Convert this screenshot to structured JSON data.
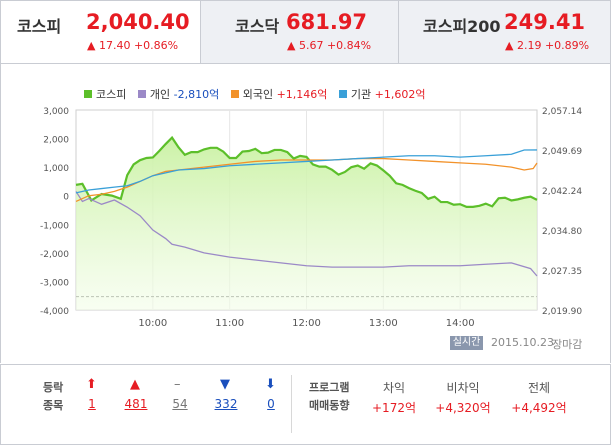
{
  "tabs": [
    {
      "name": "코스피",
      "value": "2,040.40",
      "change": "▲ 17.40 +0.86%",
      "active": true
    },
    {
      "name": "코스닥",
      "value": "681.97",
      "change": "▲ 5.67 +0.84%",
      "active": false
    },
    {
      "name": "코스피200",
      "value": "249.41",
      "change": "▲ 2.19 +0.89%",
      "active": false
    }
  ],
  "legend": {
    "kospi": "코스피",
    "individual_label": "개인",
    "individual_value": "-2,810억",
    "foreign_label": "외국인",
    "foreign_value": "+1,146억",
    "institution_label": "기관",
    "institution_value": "+1,602억"
  },
  "colors": {
    "kospi": "#5cbf2a",
    "kospi_fill": "#c9f1a2",
    "individual": "#9b89c7",
    "foreign": "#f2922a",
    "institution": "#3aa0d8",
    "up": "#e61c23",
    "down": "#1a4fbd"
  },
  "chart_data": {
    "type": "line",
    "x_ticks": [
      "10:00",
      "11:00",
      "12:00",
      "13:00",
      "14:00"
    ],
    "y_left_ticks": [
      "3,000",
      "2,000",
      "1,000",
      "0",
      "-1,000",
      "-2,000",
      "-3,000",
      "-4,000"
    ],
    "y_right_ticks": [
      "2,057.14",
      "2,049.69",
      "2,042.24",
      "2,034.80",
      "2,027.35",
      "2,019.90"
    ],
    "ylim_left": [
      -4000,
      3000
    ],
    "ylim_right": [
      2019.9,
      2057.14
    ],
    "x_range": [
      "09:00",
      "15:00"
    ],
    "series": [
      {
        "name": "코스피",
        "axis": "right",
        "x": [
          "09:00",
          "09:05",
          "09:12",
          "09:20",
          "09:28",
          "09:35",
          "09:40",
          "09:45",
          "09:50",
          "09:55",
          "10:00",
          "10:05",
          "10:10",
          "10:15",
          "10:20",
          "10:25",
          "10:30",
          "10:35",
          "10:40",
          "10:45",
          "10:50",
          "10:55",
          "11:00",
          "11:05",
          "11:10",
          "11:15",
          "11:20",
          "11:25",
          "11:30",
          "11:35",
          "11:40",
          "11:45",
          "11:50",
          "11:55",
          "12:00",
          "12:05",
          "12:10",
          "12:15",
          "12:20",
          "12:25",
          "12:30",
          "12:35",
          "12:40",
          "12:45",
          "12:50",
          "12:55",
          "13:00",
          "13:05",
          "13:10",
          "13:15",
          "13:20",
          "13:25",
          "13:30",
          "13:35",
          "13:40",
          "13:45",
          "13:50",
          "13:55",
          "14:00",
          "14:05",
          "14:10",
          "14:15",
          "14:20",
          "14:25",
          "14:30",
          "14:35",
          "14:40",
          "14:45",
          "14:50",
          "14:55",
          "15:00"
        ],
        "values": [
          2043.2,
          2043.4,
          2040.3,
          2041.5,
          2041.2,
          2040.6,
          2045.0,
          2047.0,
          2047.8,
          2048.2,
          2048.3,
          2049.5,
          2050.8,
          2052.0,
          2050.2,
          2048.8,
          2049.3,
          2049.3,
          2049.8,
          2050.1,
          2050.1,
          2049.4,
          2048.2,
          2048.2,
          2049.4,
          2049.5,
          2049.9,
          2049.1,
          2049.2,
          2049.7,
          2049.7,
          2049.3,
          2048.1,
          2048.6,
          2048.4,
          2047.0,
          2046.6,
          2046.6,
          2046.0,
          2045.1,
          2045.6,
          2046.5,
          2046.8,
          2046.2,
          2047.2,
          2046.8,
          2045.9,
          2044.9,
          2043.5,
          2043.2,
          2042.6,
          2042.1,
          2041.7,
          2040.6,
          2041.0,
          2040.0,
          2040.0,
          2039.5,
          2039.6,
          2039.1,
          2039.1,
          2039.3,
          2039.7,
          2039.2,
          2040.7,
          2040.8,
          2040.3,
          2040.5,
          2040.8,
          2041.0,
          2040.4
        ]
      },
      {
        "name": "개인",
        "axis": "left",
        "x": [
          "09:00",
          "09:05",
          "09:10",
          "09:20",
          "09:30",
          "09:40",
          "09:50",
          "10:00",
          "10:10",
          "10:15",
          "10:25",
          "10:40",
          "11:00",
          "11:20",
          "11:40",
          "12:00",
          "12:20",
          "12:40",
          "13:00",
          "13:20",
          "13:40",
          "14:00",
          "14:20",
          "14:40",
          "14:55",
          "15:00"
        ],
        "values": [
          150,
          -200,
          -100,
          -300,
          -150,
          -400,
          -700,
          -1200,
          -1500,
          -1700,
          -1800,
          -2000,
          -2150,
          -2250,
          -2350,
          -2450,
          -2500,
          -2500,
          -2500,
          -2450,
          -2450,
          -2450,
          -2400,
          -2350,
          -2550,
          -2810
        ]
      },
      {
        "name": "외국인",
        "axis": "left",
        "x": [
          "09:00",
          "09:10",
          "09:20",
          "09:30",
          "09:40",
          "09:50",
          "10:00",
          "10:10",
          "10:20",
          "10:40",
          "11:00",
          "11:20",
          "11:40",
          "12:00",
          "12:20",
          "12:40",
          "13:00",
          "13:20",
          "13:40",
          "14:00",
          "14:20",
          "14:40",
          "14:50",
          "14:57",
          "15:00"
        ],
        "values": [
          -200,
          0,
          50,
          150,
          300,
          500,
          700,
          850,
          900,
          1000,
          1100,
          1200,
          1250,
          1250,
          1250,
          1300,
          1300,
          1250,
          1200,
          1150,
          1100,
          1000,
          900,
          950,
          1146
        ]
      },
      {
        "name": "기관",
        "axis": "left",
        "x": [
          "09:00",
          "09:10",
          "09:20",
          "09:30",
          "09:40",
          "09:50",
          "10:00",
          "10:10",
          "10:20",
          "10:40",
          "11:00",
          "11:20",
          "11:40",
          "12:00",
          "12:20",
          "12:40",
          "13:00",
          "13:20",
          "13:40",
          "14:00",
          "14:20",
          "14:40",
          "14:50",
          "15:00"
        ],
        "values": [
          100,
          200,
          250,
          300,
          350,
          500,
          700,
          800,
          900,
          950,
          1050,
          1100,
          1150,
          1200,
          1250,
          1300,
          1350,
          1400,
          1400,
          1350,
          1400,
          1450,
          1600,
          1602
        ]
      }
    ],
    "reference_line": {
      "value": 2022.4,
      "axis": "right",
      "style": "dashed"
    },
    "grid": "vertical",
    "legend_position": "top-left"
  },
  "footer": {
    "badge": "실시간",
    "date": "2015.10.23",
    "status": "장마감"
  },
  "bottom": {
    "label_line1": "등락",
    "label_line2": "종목",
    "counts": [
      {
        "icon": "⬆",
        "value": "1",
        "color": "#e61c23"
      },
      {
        "icon": "▲",
        "value": "481",
        "color": "#e61c23"
      },
      {
        "icon": "–",
        "value": "54",
        "color": "#777777"
      },
      {
        "icon": "▼",
        "value": "332",
        "color": "#1a4fbd"
      },
      {
        "icon": "⬇",
        "value": "0",
        "color": "#1a4fbd"
      }
    ],
    "program_line1": "프로그램",
    "program_line2": "매매동향",
    "program": [
      {
        "label": "차익",
        "value": "+172억"
      },
      {
        "label": "비차익",
        "value": "+4,320억"
      },
      {
        "label": "전체",
        "value": "+4,492억"
      }
    ]
  }
}
